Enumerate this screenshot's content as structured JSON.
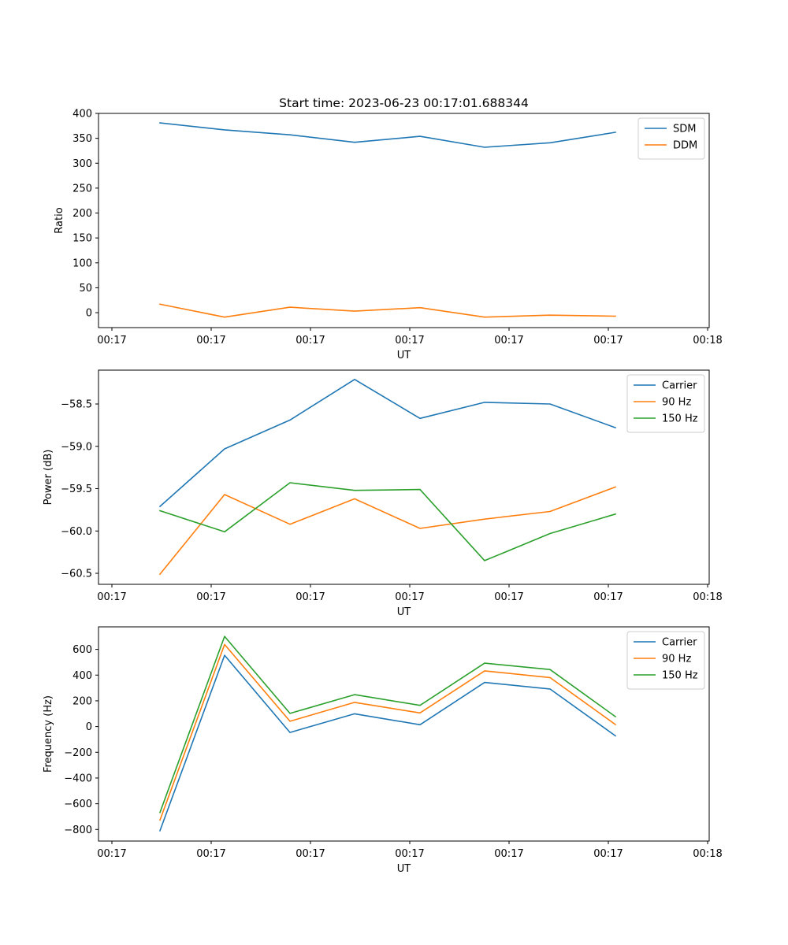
{
  "chart_data": [
    {
      "type": "line",
      "title": "Start time: 2023-06-23 00:17:01.688344",
      "xlabel": "UT",
      "ylabel": "Ratio",
      "xtick_labels": [
        "00:17",
        "00:17",
        "00:17",
        "00:17",
        "00:17",
        "00:17",
        "00:18"
      ],
      "ytick_values": [
        0,
        50,
        100,
        150,
        200,
        250,
        300,
        350,
        400
      ],
      "ytick_labels": [
        "0",
        "50",
        "100",
        "150",
        "200",
        "250",
        "300",
        "350",
        "400"
      ],
      "ylim": [
        -30,
        400
      ],
      "grid": false,
      "legend": "top-right",
      "series": [
        {
          "name": "SDM",
          "color": "#1f77b4",
          "values": [
            381,
            367,
            357,
            342,
            354,
            332,
            341,
            362
          ]
        },
        {
          "name": "DDM",
          "color": "#ff7f0e",
          "values": [
            17,
            -9,
            11,
            3,
            10,
            -9,
            -5,
            -7
          ]
        }
      ]
    },
    {
      "type": "line",
      "xlabel": "UT",
      "ylabel": "Power (dB)",
      "xtick_labels": [
        "00:17",
        "00:17",
        "00:17",
        "00:17",
        "00:17",
        "00:17",
        "00:18"
      ],
      "ytick_values": [
        -58.5,
        -59.0,
        -59.5,
        -60.0,
        -60.5
      ],
      "ytick_labels": [
        "−58.5",
        "−59.0",
        "−59.5",
        "−60.0",
        "−60.5"
      ],
      "ylim": [
        -60.63,
        -58.1
      ],
      "grid": false,
      "legend": "top-right",
      "series": [
        {
          "name": "Carrier",
          "color": "#1f77b4",
          "values": [
            -59.71,
            -59.03,
            -58.69,
            -58.21,
            -58.67,
            -58.48,
            -58.5,
            -58.78
          ]
        },
        {
          "name": "90 Hz",
          "color": "#ff7f0e",
          "values": [
            -60.51,
            -59.57,
            -59.92,
            -59.62,
            -59.97,
            -59.86,
            -59.77,
            -59.48
          ]
        },
        {
          "name": "150 Hz",
          "color": "#2ca02c",
          "values": [
            -59.76,
            -60.01,
            -59.43,
            -59.52,
            -59.51,
            -60.35,
            -60.03,
            -59.8
          ]
        }
      ]
    },
    {
      "type": "line",
      "xlabel": "UT",
      "ylabel": "Frequency (Hz)",
      "xtick_labels": [
        "00:17",
        "00:17",
        "00:17",
        "00:17",
        "00:17",
        "00:17",
        "00:18"
      ],
      "ytick_values": [
        600,
        400,
        200,
        0,
        -200,
        -400,
        -600,
        -800
      ],
      "ytick_labels": [
        "600",
        "400",
        "200",
        "0",
        "−200",
        "−400",
        "−600",
        "−800"
      ],
      "ylim": [
        -890,
        775
      ],
      "grid": false,
      "legend": "top-right",
      "series": [
        {
          "name": "Carrier",
          "color": "#1f77b4",
          "values": [
            -810,
            554,
            -46,
            99,
            14,
            343,
            292,
            -72
          ]
        },
        {
          "name": "90 Hz",
          "color": "#ff7f0e",
          "values": [
            -727,
            638,
            41,
            188,
            106,
            433,
            381,
            16
          ]
        },
        {
          "name": "150 Hz",
          "color": "#2ca02c",
          "values": [
            -668,
            701,
            102,
            248,
            165,
            493,
            443,
            77
          ]
        }
      ]
    }
  ]
}
